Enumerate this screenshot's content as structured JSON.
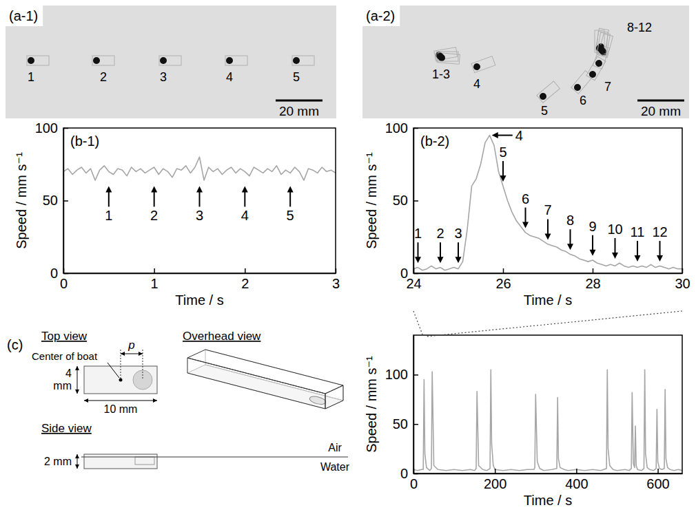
{
  "photos": [
    {
      "label": "(a-1)",
      "boat_labels": [
        "1",
        "2",
        "3",
        "4",
        "5"
      ],
      "scale_bar": "20 mm"
    },
    {
      "label": "(a-2)",
      "boat_labels": [
        "1-3",
        "4",
        "5",
        "6",
        "7",
        "8-12"
      ],
      "scale_bar": "20 mm"
    }
  ],
  "chart_data": [
    {
      "type": "line",
      "title": "(b-1)",
      "xlabel": "Time / s",
      "ylabel": "Speed / mm s⁻¹",
      "x": [
        0,
        0.05,
        0.1,
        0.15,
        0.2,
        0.25,
        0.3,
        0.35,
        0.4,
        0.45,
        0.5,
        0.55,
        0.6,
        0.65,
        0.7,
        0.75,
        0.8,
        0.85,
        0.9,
        0.95,
        1,
        1.05,
        1.1,
        1.15,
        1.2,
        1.25,
        1.3,
        1.35,
        1.4,
        1.45,
        1.5,
        1.55,
        1.6,
        1.65,
        1.7,
        1.75,
        1.8,
        1.85,
        1.9,
        1.95,
        2,
        2.05,
        2.1,
        2.15,
        2.2,
        2.25,
        2.3,
        2.35,
        2.4,
        2.45,
        2.5,
        2.55,
        2.6,
        2.65,
        2.7,
        2.75,
        2.8,
        2.85,
        2.9,
        2.95,
        3
      ],
      "series": [
        {
          "color": "#a6a6a6",
          "values": [
            70,
            72,
            68,
            71,
            73,
            69,
            72,
            64,
            71,
            74,
            70,
            68,
            72,
            71,
            67,
            73,
            70,
            72,
            69,
            71,
            73,
            68,
            72,
            70,
            66,
            72,
            71,
            74,
            69,
            73,
            80,
            64,
            73,
            70,
            72,
            68,
            71,
            73,
            69,
            72,
            70,
            67,
            73,
            71,
            69,
            72,
            70,
            74,
            68,
            71,
            69,
            73,
            70,
            64,
            72,
            71,
            69,
            73,
            70,
            71,
            69
          ]
        }
      ],
      "xlim": [
        0,
        3
      ],
      "xticks": [
        0,
        1,
        2,
        3
      ],
      "ylim": [
        0,
        100
      ],
      "yticks": [
        0,
        50,
        100
      ],
      "annotations": [
        {
          "text": "1",
          "x": 0.5,
          "y": 60
        },
        {
          "text": "2",
          "x": 1,
          "y": 60
        },
        {
          "text": "3",
          "x": 1.5,
          "y": 60
        },
        {
          "text": "4",
          "x": 2,
          "y": 60
        },
        {
          "text": "5",
          "x": 2.5,
          "y": 60
        }
      ]
    },
    {
      "type": "line",
      "title": "(b-2)",
      "xlabel": "Time / s",
      "ylabel": "Speed / mm s⁻¹",
      "x": [
        24,
        24.1,
        24.2,
        24.3,
        24.4,
        24.5,
        24.6,
        24.7,
        24.8,
        24.9,
        25,
        25.1,
        25.2,
        25.3,
        25.4,
        25.5,
        25.6,
        25.7,
        25.8,
        25.9,
        26,
        26.1,
        26.2,
        26.3,
        26.4,
        26.5,
        26.6,
        26.7,
        26.8,
        26.9,
        27,
        27.1,
        27.2,
        27.3,
        27.4,
        27.5,
        27.6,
        27.7,
        27.8,
        27.9,
        28,
        28.1,
        28.2,
        28.3,
        28.4,
        28.5,
        28.6,
        28.7,
        28.8,
        28.9,
        29,
        29.1,
        29.2,
        29.3,
        29.4,
        29.5,
        29.6,
        29.7,
        29.8,
        29.9,
        30
      ],
      "series": [
        {
          "color": "#a6a6a6",
          "values": [
            3,
            4,
            2,
            3,
            5,
            3,
            4,
            2,
            3,
            4,
            3,
            8,
            30,
            60,
            65,
            75,
            90,
            95,
            88,
            70,
            60,
            50,
            42,
            36,
            32,
            28,
            26,
            25,
            24,
            22,
            20,
            19,
            18,
            16,
            15,
            13,
            12,
            10,
            9,
            8,
            9,
            7,
            6,
            5,
            6,
            5,
            7,
            5,
            4,
            5,
            4,
            5,
            4,
            6,
            4,
            5,
            4,
            3,
            4,
            3,
            3
          ]
        }
      ],
      "xlim": [
        24,
        30
      ],
      "xticks": [
        24,
        26,
        28,
        30
      ],
      "ylim": [
        0,
        100
      ],
      "yticks": [
        0,
        50,
        100
      ],
      "annotations": [
        {
          "text": "1",
          "x": 24.1,
          "y": 7
        },
        {
          "text": "2",
          "x": 24.6,
          "y": 7
        },
        {
          "text": "3",
          "x": 25,
          "y": 7
        },
        {
          "text": "4",
          "x": 25.75,
          "y": 95
        },
        {
          "text": "5",
          "x": 26,
          "y": 63
        },
        {
          "text": "6",
          "x": 26.5,
          "y": 31
        },
        {
          "text": "7",
          "x": 27,
          "y": 23
        },
        {
          "text": "8",
          "x": 27.5,
          "y": 16
        },
        {
          "text": "9",
          "x": 28,
          "y": 12
        },
        {
          "text": "10",
          "x": 28.5,
          "y": 10
        },
        {
          "text": "11",
          "x": 29,
          "y": 8
        },
        {
          "text": "12",
          "x": 29.5,
          "y": 8
        }
      ]
    },
    {
      "type": "line",
      "xlabel": "Time / s",
      "ylabel": "Speed / mm s⁻¹",
      "x": [
        0,
        10,
        20,
        24,
        26,
        28,
        32,
        40,
        44,
        46,
        50,
        60,
        80,
        100,
        120,
        140,
        150,
        154,
        156,
        160,
        170,
        180,
        188,
        190,
        192,
        196,
        200,
        220,
        240,
        260,
        280,
        296,
        298,
        300,
        304,
        310,
        320,
        340,
        352,
        354,
        356,
        360,
        370,
        380,
        400,
        420,
        440,
        460,
        474,
        476,
        478,
        482,
        490,
        500,
        520,
        530,
        535,
        537,
        540,
        543,
        545,
        547,
        550,
        560,
        566,
        568,
        570,
        574,
        580,
        590,
        596,
        598,
        600,
        604,
        610,
        616,
        618,
        620,
        624,
        630,
        640,
        650,
        660
      ],
      "series": [
        {
          "color": "#a6a6a6",
          "values": [
            4,
            3,
            4,
            4,
            95,
            20,
            6,
            3,
            5,
            103,
            8,
            4,
            3,
            4,
            3,
            4,
            3,
            5,
            83,
            8,
            4,
            3,
            5,
            105,
            30,
            8,
            4,
            3,
            4,
            3,
            4,
            4,
            6,
            80,
            12,
            5,
            3,
            4,
            5,
            77,
            15,
            6,
            4,
            3,
            4,
            3,
            4,
            3,
            5,
            105,
            25,
            8,
            4,
            3,
            4,
            3,
            5,
            82,
            10,
            6,
            48,
            8,
            4,
            3,
            5,
            105,
            20,
            6,
            4,
            3,
            5,
            65,
            12,
            5,
            4,
            5,
            85,
            15,
            6,
            4,
            3,
            4,
            3
          ]
        }
      ],
      "xlim": [
        0,
        660
      ],
      "xticks": [
        0,
        200,
        400,
        600
      ],
      "ylim": [
        0,
        140
      ],
      "yticks": [
        0,
        50,
        100
      ]
    }
  ],
  "diagram": {
    "label": "(c)",
    "top_view": {
      "title": "Top view",
      "center_label": "Center of boat",
      "p_label": "p",
      "width_label": "4 mm",
      "length_label": "10 mm"
    },
    "overhead_view": {
      "title": "Overhead view"
    },
    "side_view": {
      "title": "Side view",
      "height_label": "2 mm",
      "air_label": "Air",
      "water_label": "Water"
    }
  }
}
